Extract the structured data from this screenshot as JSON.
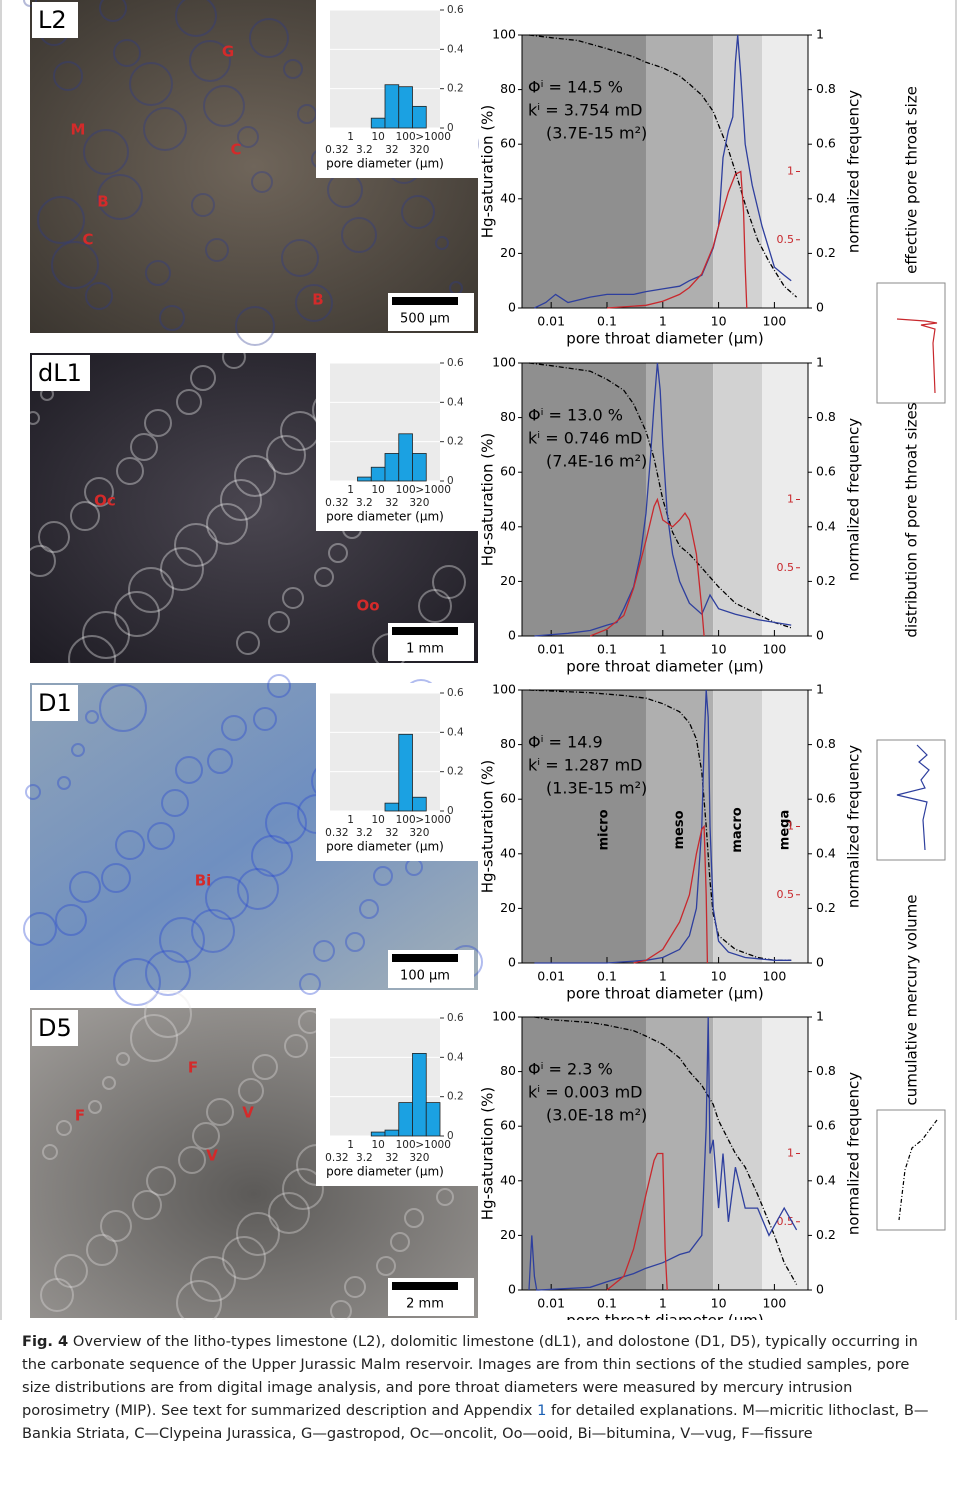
{
  "panels": [
    {
      "label": "L2",
      "scale_bar": "500 µm",
      "annotations": [
        "G",
        "M",
        "C",
        "B",
        "C",
        "B"
      ]
    },
    {
      "label": "dL1",
      "scale_bar": "1 mm",
      "annotations": [
        "Oc",
        "Oo"
      ]
    },
    {
      "label": "D1",
      "scale_bar": "100 µm",
      "annotations": [
        "Bi",
        "Bi"
      ]
    },
    {
      "label": "D5",
      "scale_bar": "2 mm",
      "annotations": [
        "F",
        "F",
        "V",
        "V"
      ]
    }
  ],
  "legend": [
    {
      "name": "effective pore throat size",
      "color": "#c8282d"
    },
    {
      "name": "distribution of pore throat sizes",
      "color": "#2e3f9e"
    },
    {
      "name": "cumulative mercury volume",
      "color": "#000000"
    }
  ],
  "chart_data": [
    {
      "type": "bar",
      "xlabel": "pore diameter (µm)",
      "categories": [
        "0.32",
        "1",
        "3.2",
        "10",
        "32",
        "100",
        "320",
        ">1000"
      ],
      "values": [
        0,
        0,
        0,
        0.05,
        0.22,
        0.21,
        0.11,
        0
      ],
      "color": "#1ba1e2",
      "ylim": [
        0,
        0.6
      ],
      "yticks": [
        0,
        0.2,
        0.4,
        0.6
      ],
      "grid": true
    },
    {
      "type": "line",
      "xlabel": "pore throat diameter (µm)",
      "ylabel": "Hg-saturation (%)",
      "y2label": "normalized frequency",
      "log_x": true,
      "xlim": [
        0.003,
        400
      ],
      "xticks": [
        0.01,
        0.1,
        1,
        10,
        100
      ],
      "ylim": [
        0,
        100
      ],
      "yticks": [
        0,
        20,
        40,
        60,
        80,
        100
      ],
      "y2lim": [
        0,
        1
      ],
      "y2ticks": [
        0,
        0.2,
        0.4,
        0.6,
        0.8,
        1
      ],
      "y3lim": [
        0,
        2
      ],
      "y3ticks": [
        0.5,
        1
      ],
      "zone_edges": [
        0.5,
        8,
        60
      ],
      "zone_colors": [
        "#8f8f8f",
        "#afafaf",
        "#d2d2d2",
        "#ececec"
      ],
      "annotations": [
        "Φⁱ = 14.5 %",
        "kⁱ = 3.754 mD",
        "(3.7E-15 m²)"
      ],
      "series": [
        {
          "color": "#000000",
          "axis": "y",
          "dash": true,
          "x": [
            0.004,
            0.01,
            0.03,
            0.1,
            0.3,
            0.5,
            1,
            2,
            3,
            5,
            8,
            10,
            15,
            20,
            30,
            50,
            80,
            150,
            250
          ],
          "values": [
            100,
            99,
            98,
            95,
            92,
            90,
            88,
            85,
            82,
            78,
            72,
            67,
            58,
            50,
            38,
            25,
            17,
            8,
            4
          ]
        },
        {
          "color": "#2e3f9e",
          "axis": "y2",
          "x": [
            0.005,
            0.008,
            0.012,
            0.02,
            0.05,
            0.1,
            0.3,
            0.5,
            1,
            2,
            3,
            5,
            8,
            10,
            12,
            15,
            18,
            20,
            22,
            25,
            30,
            40,
            60,
            100,
            150,
            200
          ],
          "values": [
            0,
            0.02,
            0.05,
            0.02,
            0.04,
            0.05,
            0.05,
            0.06,
            0.07,
            0.08,
            0.1,
            0.12,
            0.22,
            0.3,
            0.55,
            0.65,
            0.7,
            0.9,
            1,
            0.85,
            0.6,
            0.45,
            0.3,
            0.15,
            0.12,
            0.1
          ]
        },
        {
          "color": "#c8282d",
          "axis": "y3",
          "x": [
            0.1,
            0.5,
            1,
            2,
            3,
            5,
            8,
            10,
            15,
            20,
            25,
            28,
            30,
            32
          ],
          "values": [
            0,
            0.02,
            0.05,
            0.1,
            0.15,
            0.25,
            0.45,
            0.6,
            0.85,
            0.98,
            1,
            0.7,
            0.3,
            0
          ]
        }
      ]
    },
    {
      "type": "bar",
      "xlabel": "pore diameter (µm)",
      "categories": [
        "0.32",
        "1",
        "3.2",
        "10",
        "32",
        "100",
        "320",
        ">1000"
      ],
      "values": [
        0,
        0,
        0.02,
        0.07,
        0.14,
        0.24,
        0.14,
        0
      ],
      "color": "#1ba1e2",
      "ylim": [
        0,
        0.6
      ],
      "yticks": [
        0,
        0.2,
        0.4,
        0.6
      ],
      "grid": true
    },
    {
      "type": "line",
      "xlabel": "pore throat diameter (µm)",
      "ylabel": "Hg-saturation (%)",
      "y2label": "normalized frequency",
      "log_x": true,
      "xlim": [
        0.003,
        400
      ],
      "xticks": [
        0.01,
        0.1,
        1,
        10,
        100
      ],
      "ylim": [
        0,
        100
      ],
      "yticks": [
        0,
        20,
        40,
        60,
        80,
        100
      ],
      "y2lim": [
        0,
        1
      ],
      "y2ticks": [
        0,
        0.2,
        0.4,
        0.6,
        0.8,
        1
      ],
      "y3lim": [
        0,
        2
      ],
      "y3ticks": [
        0.5,
        1
      ],
      "zone_edges": [
        0.5,
        8,
        60
      ],
      "zone_colors": [
        "#8f8f8f",
        "#afafaf",
        "#d2d2d2",
        "#ececec"
      ],
      "annotations": [
        "Φⁱ = 13.0 %",
        "kⁱ = 0.746 mD",
        "(7.4E-16 m²)"
      ],
      "series": [
        {
          "color": "#000000",
          "axis": "y",
          "dash": true,
          "x": [
            0.004,
            0.01,
            0.05,
            0.1,
            0.2,
            0.3,
            0.5,
            0.7,
            1,
            1.5,
            2,
            3,
            5,
            10,
            20,
            50,
            100,
            200
          ],
          "values": [
            100,
            99,
            97,
            94,
            90,
            85,
            75,
            65,
            50,
            38,
            33,
            30,
            25,
            18,
            12,
            8,
            5,
            3
          ]
        },
        {
          "color": "#2e3f9e",
          "axis": "y2",
          "x": [
            0.005,
            0.02,
            0.05,
            0.1,
            0.15,
            0.2,
            0.3,
            0.4,
            0.5,
            0.6,
            0.7,
            0.8,
            0.9,
            1,
            1.2,
            1.5,
            2,
            3,
            5,
            7,
            10,
            20,
            50,
            100,
            200
          ],
          "values": [
            0,
            0.01,
            0.02,
            0.04,
            0.05,
            0.1,
            0.18,
            0.3,
            0.45,
            0.65,
            0.85,
            1,
            0.9,
            0.7,
            0.45,
            0.3,
            0.2,
            0.12,
            0.08,
            0.15,
            0.1,
            0.08,
            0.06,
            0.05,
            0.04
          ]
        },
        {
          "color": "#c8282d",
          "axis": "y3",
          "x": [
            0.05,
            0.1,
            0.2,
            0.3,
            0.5,
            0.7,
            0.8,
            1,
            1.5,
            2,
            2.5,
            3,
            4,
            5,
            5.5
          ],
          "values": [
            0,
            0.05,
            0.15,
            0.35,
            0.7,
            0.95,
            1,
            0.85,
            0.8,
            0.85,
            0.9,
            0.85,
            0.6,
            0.2,
            0
          ]
        }
      ]
    },
    {
      "type": "bar",
      "xlabel": "pore diameter (µm)",
      "categories": [
        "0.32",
        "1",
        "3.2",
        "10",
        "32",
        "100",
        "320",
        ">1000"
      ],
      "values": [
        0,
        0,
        0,
        0,
        0.04,
        0.39,
        0.07,
        0
      ],
      "color": "#1ba1e2",
      "ylim": [
        0,
        0.6
      ],
      "yticks": [
        0,
        0.2,
        0.4,
        0.6
      ],
      "grid": true
    },
    {
      "type": "line",
      "xlabel": "pore throat diameter (µm)",
      "ylabel": "Hg-saturation (%)",
      "y2label": "normalized frequency",
      "log_x": true,
      "xlim": [
        0.003,
        400
      ],
      "xticks": [
        0.01,
        0.1,
        1,
        10,
        100
      ],
      "ylim": [
        0,
        100
      ],
      "yticks": [
        0,
        20,
        40,
        60,
        80,
        100
      ],
      "y2lim": [
        0,
        1
      ],
      "y2ticks": [
        0,
        0.2,
        0.4,
        0.6,
        0.8,
        1
      ],
      "y3lim": [
        0,
        2
      ],
      "y3ticks": [
        0.5,
        1
      ],
      "zone_edges": [
        0.5,
        8,
        60
      ],
      "zone_colors": [
        "#8f8f8f",
        "#afafaf",
        "#d2d2d2",
        "#ececec"
      ],
      "zone_labels": [
        "micro",
        "meso",
        "macro",
        "mega"
      ],
      "annotations": [
        "Φⁱ = 14.9",
        "kⁱ = 1.287 mD",
        "(1.3E-15 m²)"
      ],
      "series": [
        {
          "color": "#000000",
          "axis": "y",
          "dash": true,
          "x": [
            0.004,
            0.05,
            0.2,
            0.5,
            1,
            2,
            3,
            4,
            5,
            6,
            7,
            8,
            10,
            20,
            50,
            100,
            200
          ],
          "values": [
            100,
            99,
            98,
            97,
            95,
            92,
            88,
            82,
            70,
            50,
            30,
            18,
            10,
            5,
            2,
            1,
            1
          ]
        },
        {
          "color": "#2e3f9e",
          "axis": "y2",
          "x": [
            0.005,
            0.1,
            0.5,
            1,
            2,
            3,
            4,
            5,
            5.5,
            6,
            6.5,
            7,
            8,
            10,
            15,
            30,
            100,
            200
          ],
          "values": [
            0,
            0,
            0.01,
            0.02,
            0.05,
            0.1,
            0.2,
            0.5,
            0.8,
            1,
            0.9,
            0.5,
            0.2,
            0.08,
            0.04,
            0.02,
            0.01,
            0.01
          ]
        },
        {
          "color": "#c8282d",
          "axis": "y3",
          "x": [
            0.3,
            0.5,
            1,
            2,
            3,
            4,
            5,
            5.5,
            6,
            6.3
          ],
          "values": [
            0,
            0.02,
            0.1,
            0.3,
            0.5,
            0.8,
            0.98,
            1,
            0.5,
            0
          ]
        }
      ]
    },
    {
      "type": "bar",
      "xlabel": "pore diameter (µm)",
      "categories": [
        "0.32",
        "1",
        "3.2",
        "10",
        "32",
        "100",
        "320",
        ">1000"
      ],
      "values": [
        0,
        0,
        0,
        0.02,
        0.03,
        0.17,
        0.42,
        0.17
      ],
      "color": "#1ba1e2",
      "ylim": [
        0,
        0.6
      ],
      "yticks": [
        0,
        0.2,
        0.4,
        0.6
      ],
      "grid": true
    },
    {
      "type": "line",
      "xlabel": "pore throat diameter (µm)",
      "ylabel": "Hg-saturation (%)",
      "y2label": "normalized frequency",
      "log_x": true,
      "xlim": [
        0.003,
        400
      ],
      "xticks": [
        0.01,
        0.1,
        1,
        10,
        100
      ],
      "ylim": [
        0,
        100
      ],
      "yticks": [
        0,
        20,
        40,
        60,
        80,
        100
      ],
      "y2lim": [
        0,
        1
      ],
      "y2ticks": [
        0,
        0.2,
        0.4,
        0.6,
        0.8,
        1
      ],
      "y3lim": [
        0,
        2
      ],
      "y3ticks": [
        0.5,
        1
      ],
      "zone_edges": [
        0.5,
        8,
        60
      ],
      "zone_colors": [
        "#8f8f8f",
        "#afafaf",
        "#d2d2d2",
        "#ececec"
      ],
      "annotations": [
        "Φⁱ = 2.3 %",
        "kⁱ = 0.003 mD",
        "(3.0E-18 m²)"
      ],
      "series": [
        {
          "color": "#000000",
          "axis": "y",
          "dash": true,
          "x": [
            0.005,
            0.01,
            0.05,
            0.1,
            0.3,
            0.5,
            1,
            2,
            3,
            5,
            8,
            10,
            20,
            30,
            50,
            100,
            150,
            250
          ],
          "values": [
            100,
            99,
            98,
            97,
            95,
            93,
            90,
            85,
            80,
            75,
            68,
            62,
            50,
            45,
            35,
            20,
            10,
            2
          ]
        },
        {
          "color": "#2e3f9e",
          "axis": "y2",
          "x": [
            0.004,
            0.0045,
            0.005,
            0.0055,
            0.006,
            0.05,
            0.1,
            0.3,
            0.5,
            1,
            2,
            3,
            5,
            6,
            6.5,
            7,
            8,
            10,
            12,
            15,
            20,
            30,
            50,
            80,
            150,
            250
          ],
          "values": [
            0,
            0.2,
            0.05,
            0,
            0,
            0.01,
            0.03,
            0.06,
            0.08,
            0.1,
            0.13,
            0.14,
            0.2,
            0.6,
            1,
            0.5,
            0.55,
            0.3,
            0.5,
            0.25,
            0.45,
            0.3,
            0.3,
            0.2,
            0.3,
            0.22
          ]
        },
        {
          "color": "#c8282d",
          "axis": "y3",
          "x": [
            0.1,
            0.2,
            0.3,
            0.5,
            0.7,
            0.8,
            1,
            1.1,
            1.2
          ],
          "values": [
            0,
            0.1,
            0.3,
            0.7,
            0.95,
            1,
            1,
            0.3,
            0
          ]
        }
      ]
    }
  ],
  "caption": {
    "label": "Fig. 4",
    "text": "  Overview of the litho-types limestone (L2), dolomitic limestone (dL1), and dolostone (D1, D5), typically occurring in the carbonate sequence of the Upper Jurassic Malm reservoir. Images are from thin sections of the studied samples, pore size distributions are from digital image analysis, and pore throat diameters were measured by mercury intrusion porosimetry (MIP). See text for summarized description and Appendix ",
    "link": "1",
    "text2": " for detailed explanations. M—micritic lithoclast, B—Bankia Striata, C—Clypeina Jurassica, G—gastropod, Oc—oncolit, Oo—ooid, Bi—bitumina, V—vug, F—fissure"
  }
}
